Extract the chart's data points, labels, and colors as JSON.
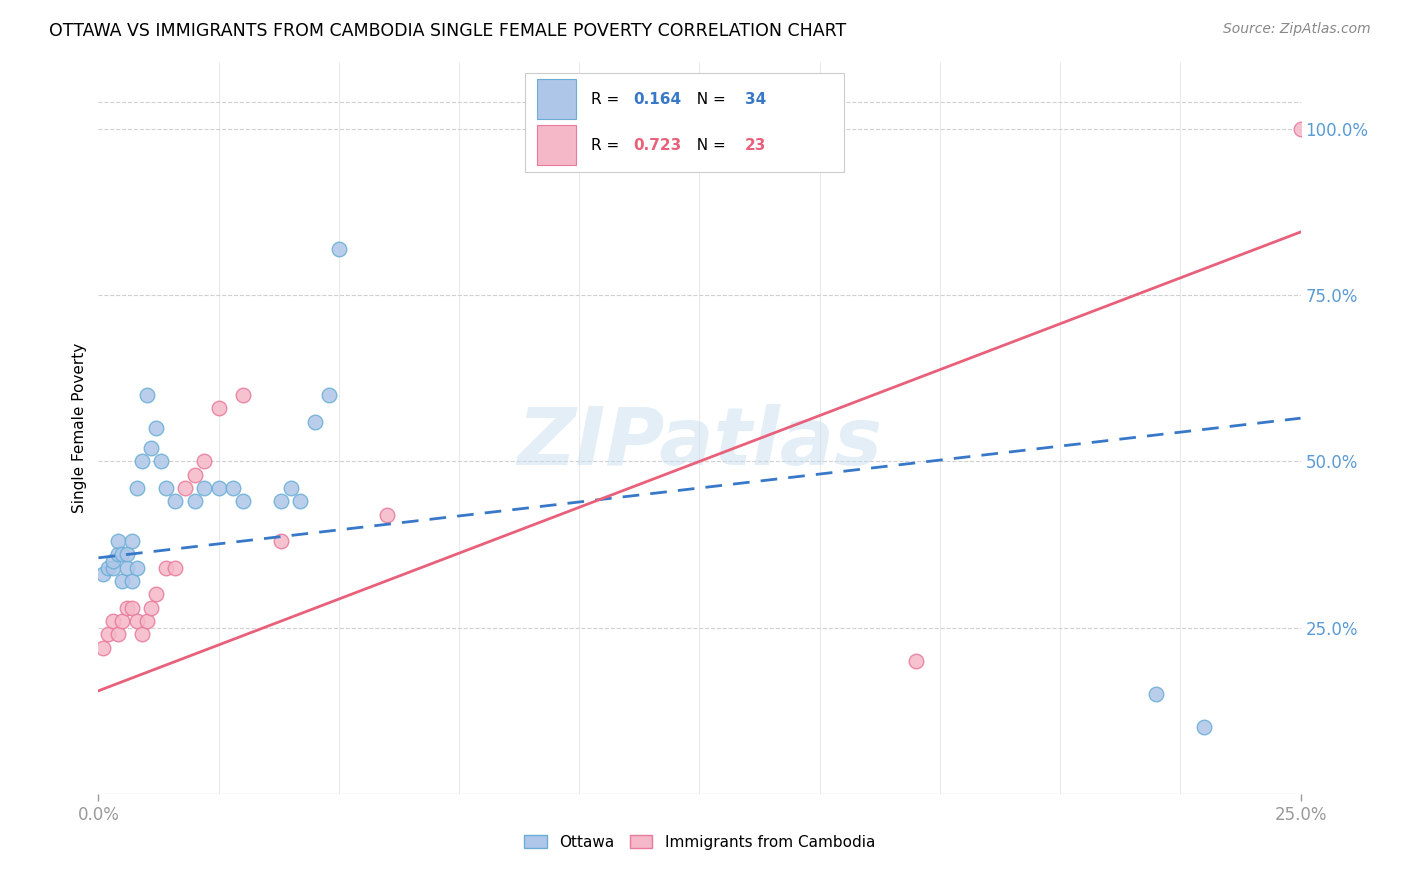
{
  "title": "OTTAWA VS IMMIGRANTS FROM CAMBODIA SINGLE FEMALE POVERTY CORRELATION CHART",
  "source": "Source: ZipAtlas.com",
  "ylabel": "Single Female Poverty",
  "right_yticks": [
    "100.0%",
    "75.0%",
    "50.0%",
    "25.0%"
  ],
  "right_ytick_vals": [
    1.0,
    0.75,
    0.5,
    0.25
  ],
  "legend1_r": "0.164",
  "legend1_n": "34",
  "legend2_r": "0.723",
  "legend2_n": "23",
  "watermark": "ZIPatlas",
  "ottawa_color": "#aec6e8",
  "ottawa_edge": "#6aaed6",
  "cambodia_color": "#f5b8c8",
  "cambodia_edge": "#e87a9a",
  "trend_ottawa_color": "#3878c8",
  "trend_cambodia_color": "#e8607a",
  "xlim": [
    0.0,
    0.25
  ],
  "ylim": [
    0.0,
    1.1
  ],
  "ottawa_x": [
    0.001,
    0.002,
    0.003,
    0.003,
    0.004,
    0.004,
    0.005,
    0.005,
    0.006,
    0.006,
    0.007,
    0.007,
    0.008,
    0.008,
    0.009,
    0.01,
    0.011,
    0.012,
    0.013,
    0.014,
    0.016,
    0.02,
    0.022,
    0.025,
    0.028,
    0.03,
    0.038,
    0.04,
    0.042,
    0.045,
    0.048,
    0.05,
    0.22,
    0.23
  ],
  "ottawa_y": [
    0.33,
    0.34,
    0.34,
    0.35,
    0.36,
    0.38,
    0.32,
    0.36,
    0.34,
    0.36,
    0.32,
    0.38,
    0.34,
    0.46,
    0.5,
    0.6,
    0.52,
    0.55,
    0.5,
    0.46,
    0.44,
    0.44,
    0.46,
    0.46,
    0.46,
    0.44,
    0.44,
    0.46,
    0.44,
    0.56,
    0.6,
    0.82,
    0.15,
    0.1
  ],
  "cambodia_x": [
    0.001,
    0.002,
    0.003,
    0.004,
    0.005,
    0.006,
    0.007,
    0.008,
    0.009,
    0.01,
    0.011,
    0.012,
    0.014,
    0.016,
    0.018,
    0.02,
    0.022,
    0.025,
    0.03,
    0.038,
    0.06,
    0.17,
    0.25
  ],
  "cambodia_y": [
    0.22,
    0.24,
    0.26,
    0.24,
    0.26,
    0.28,
    0.28,
    0.26,
    0.24,
    0.26,
    0.28,
    0.3,
    0.34,
    0.34,
    0.46,
    0.48,
    0.5,
    0.58,
    0.6,
    0.38,
    0.42,
    0.2,
    1.0
  ],
  "trend_ottawa_x0": 0.0,
  "trend_ottawa_y0": 0.355,
  "trend_ottawa_x1": 0.25,
  "trend_ottawa_y1": 0.565,
  "trend_cambodia_x0": 0.0,
  "trend_cambodia_y0": 0.155,
  "trend_cambodia_x1": 0.25,
  "trend_cambodia_y1": 0.845
}
